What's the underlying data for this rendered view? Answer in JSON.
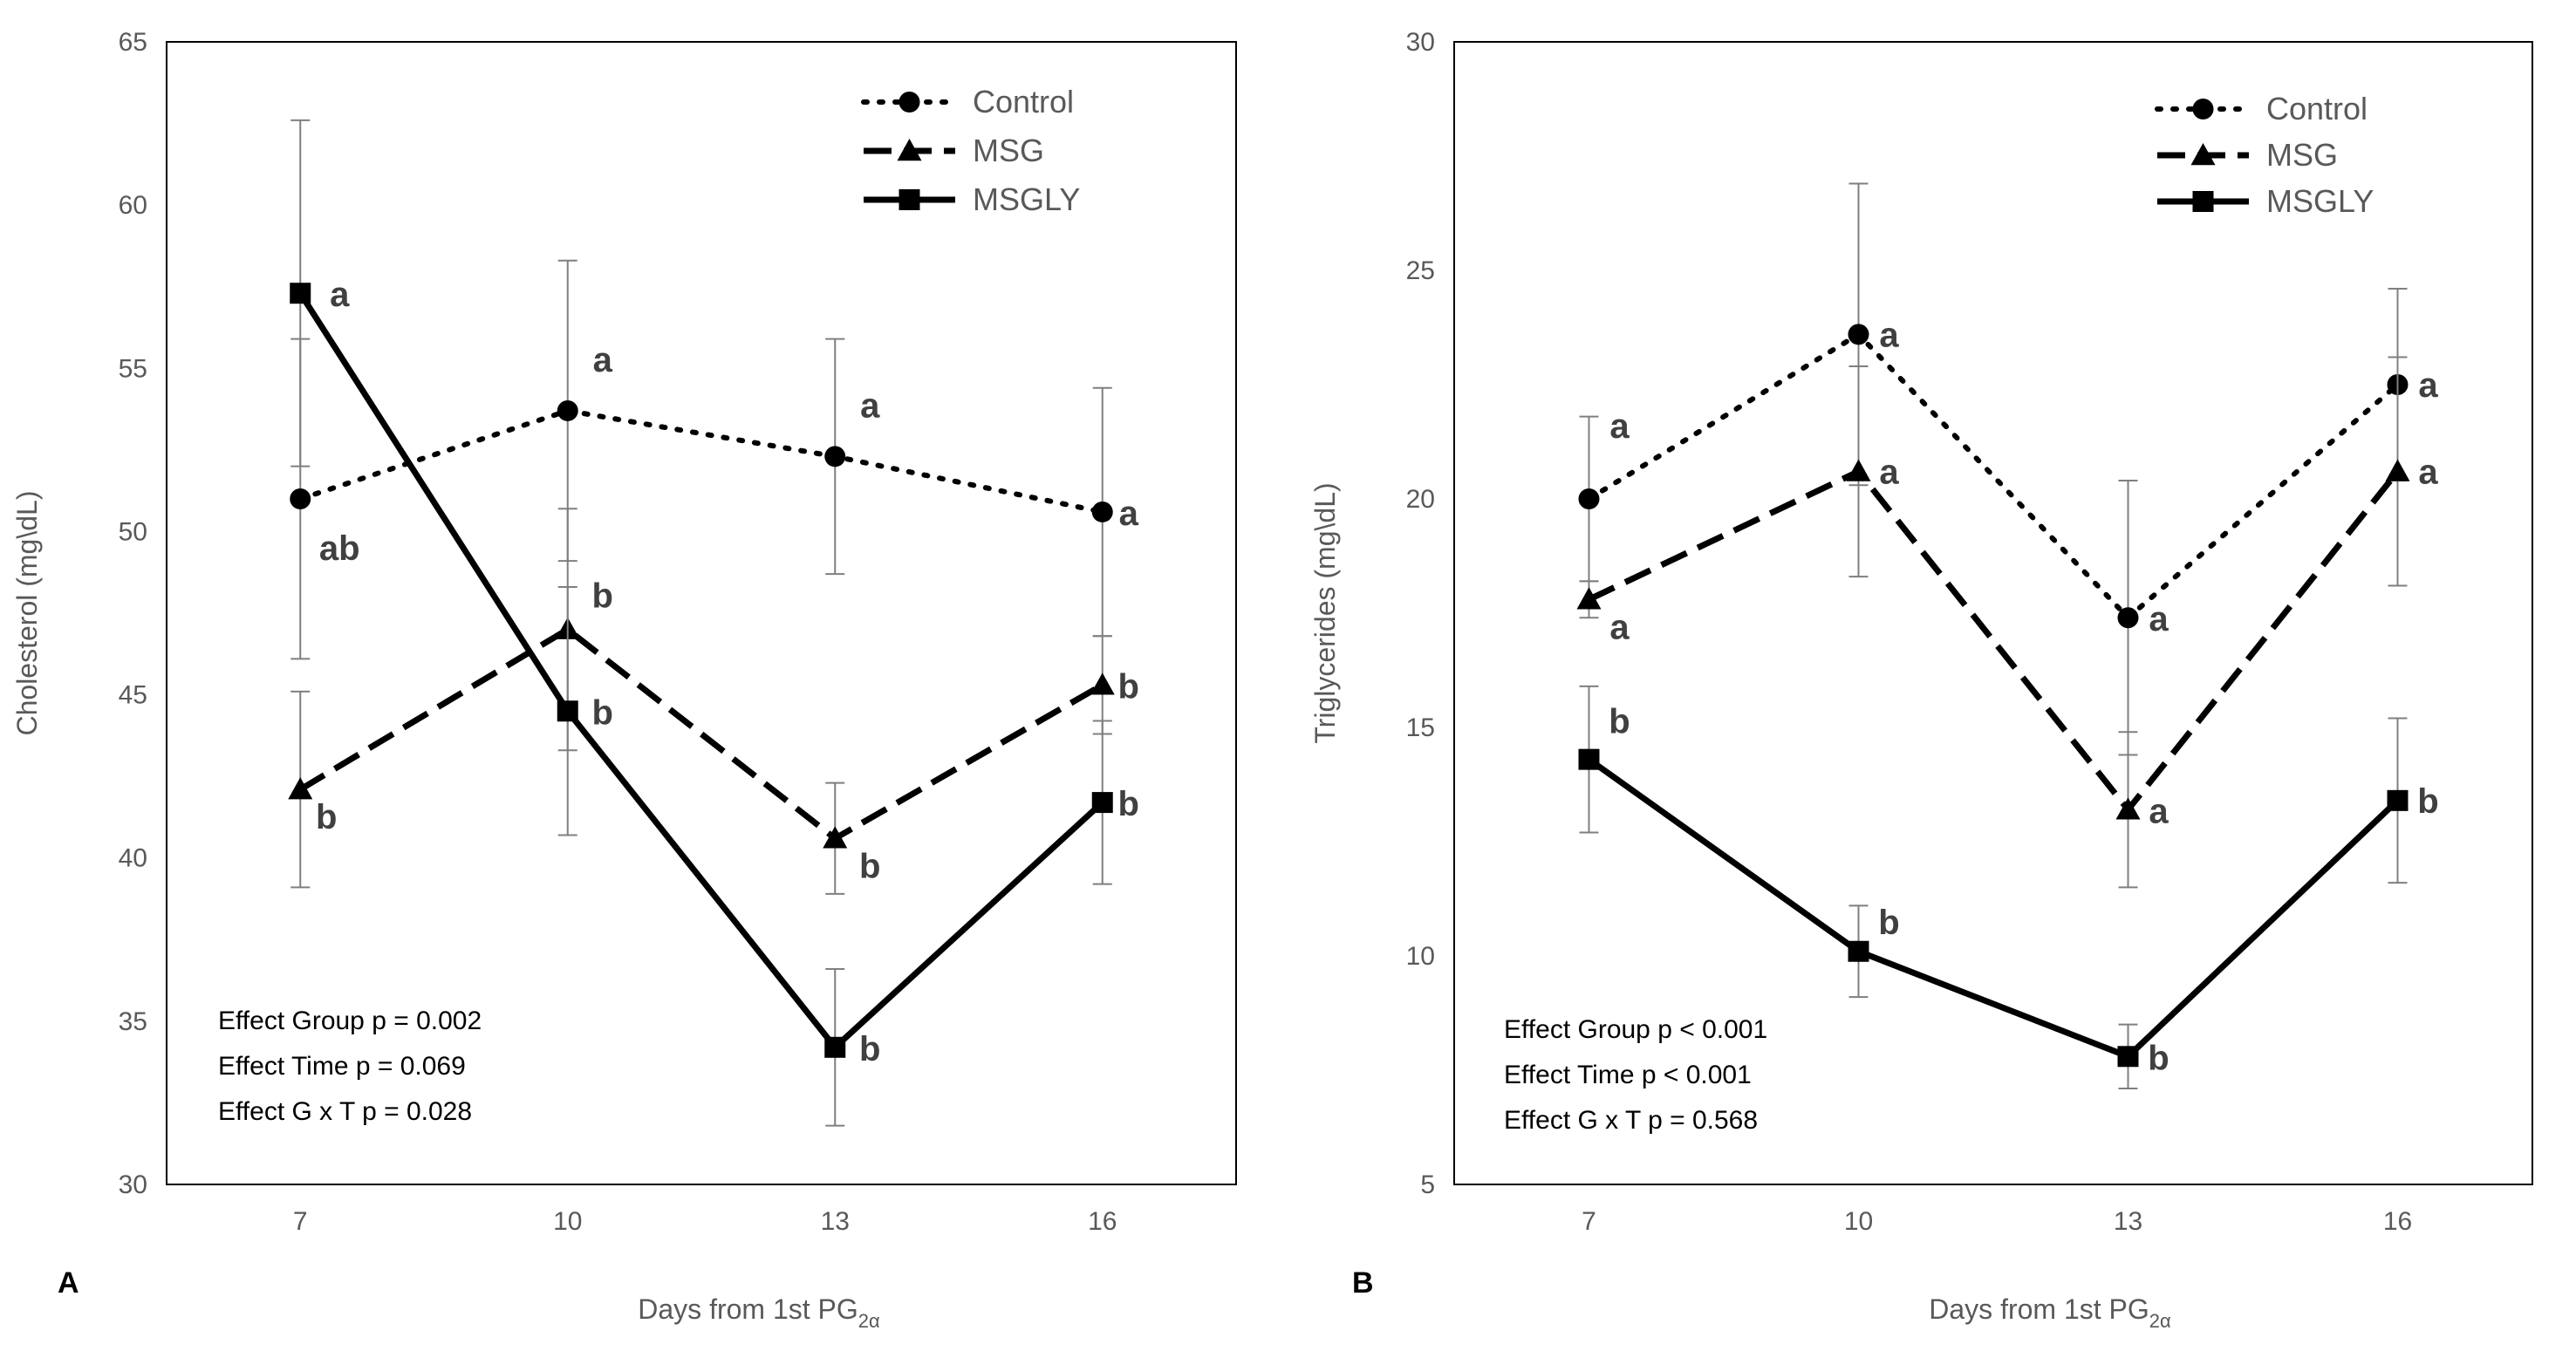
{
  "chart_data": [
    {
      "panel_label": "A",
      "type": "line",
      "xlabel": "Days from 1st PG",
      "xlabel_sub": "2α",
      "ylabel": "Cholesterol  (mg\\dL)",
      "categories": [
        "7",
        "10",
        "13",
        "16"
      ],
      "ylim": [
        30,
        65
      ],
      "yticks": [
        30,
        35,
        40,
        45,
        50,
        55,
        60,
        65
      ],
      "legend_position": "top-right",
      "series": [
        {
          "name": "Control",
          "line_style": "dotted",
          "marker": "circle",
          "values": [
            51.0,
            53.7,
            52.3,
            50.6
          ],
          "errors": [
            4.9,
            4.6,
            3.6,
            3.8
          ],
          "labels": [
            "ab",
            "a",
            "a",
            "a"
          ]
        },
        {
          "name": "MSG",
          "line_style": "dashed",
          "marker": "triangle",
          "values": [
            42.1,
            47.0,
            40.6,
            45.3
          ],
          "errors": [
            3.0,
            3.7,
            1.7,
            1.5
          ],
          "labels": [
            "b",
            "b",
            "b",
            "b"
          ]
        },
        {
          "name": "MSGLY",
          "line_style": "solid",
          "marker": "square",
          "values": [
            57.3,
            44.5,
            34.2,
            41.7
          ],
          "errors": [
            5.3,
            3.8,
            2.4,
            2.5
          ],
          "labels": [
            "a",
            "b",
            "b",
            "b"
          ]
        }
      ],
      "effects": [
        "Effect Group p = 0.002",
        "Effect Time p = 0.069",
        "Effect G x T p = 0.028"
      ]
    },
    {
      "panel_label": "B",
      "type": "line",
      "xlabel": "Days from 1st PG",
      "xlabel_sub": "2α",
      "ylabel": "Triglycerides  (mg\\dL)",
      "categories": [
        "7",
        "10",
        "13",
        "16"
      ],
      "ylim": [
        5,
        30
      ],
      "yticks": [
        5,
        10,
        15,
        20,
        25,
        30
      ],
      "legend_position": "top-right",
      "series": [
        {
          "name": "Control",
          "line_style": "dotted",
          "marker": "circle",
          "values": [
            20.0,
            23.6,
            17.4,
            22.5
          ],
          "errors": [
            1.8,
            3.3,
            3.0,
            2.1
          ],
          "labels": [
            "a",
            "a",
            "a",
            "a"
          ]
        },
        {
          "name": "MSG",
          "line_style": "dashed",
          "marker": "triangle",
          "values": [
            17.8,
            20.6,
            13.2,
            20.6
          ],
          "errors": [
            0.4,
            2.3,
            1.7,
            2.5
          ],
          "labels": [
            "a",
            "a",
            "a",
            "a"
          ]
        },
        {
          "name": "MSGLY",
          "line_style": "solid",
          "marker": "square",
          "values": [
            14.3,
            10.1,
            7.8,
            13.4
          ],
          "errors": [
            1.6,
            1.0,
            0.7,
            1.8
          ],
          "labels": [
            "b",
            "b",
            "b",
            "b"
          ]
        }
      ],
      "effects": [
        "Effect Group p < 0.001",
        "Effect Time p < 0.001",
        "Effect G x T p = 0.568"
      ]
    }
  ]
}
